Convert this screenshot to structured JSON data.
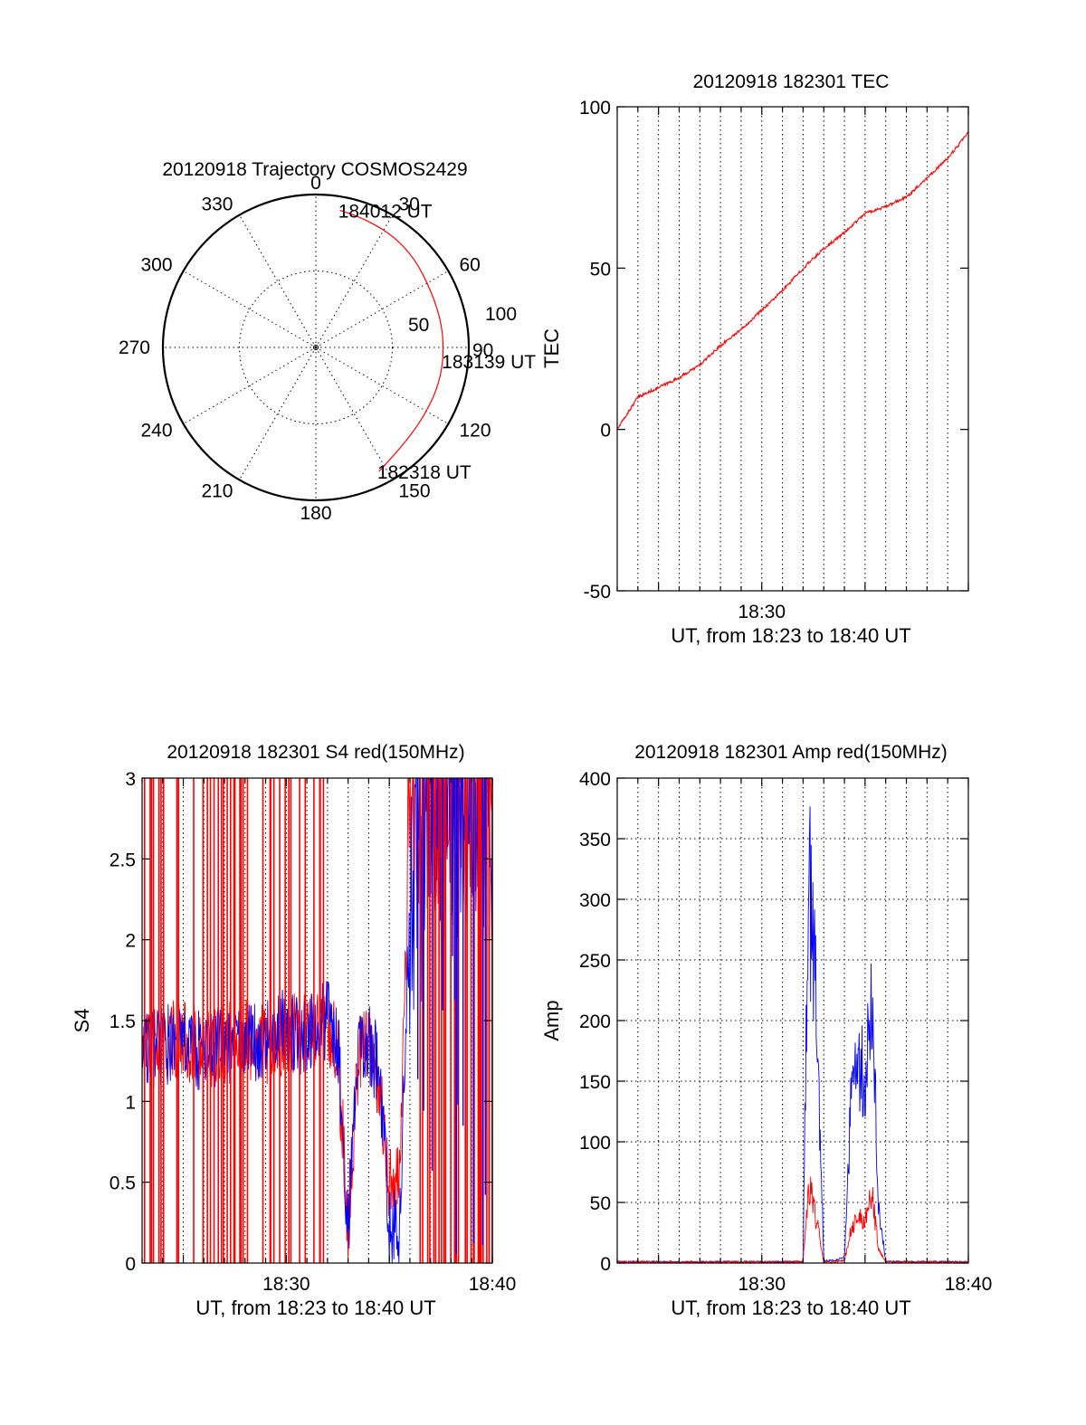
{
  "figure": {
    "date": "20120918",
    "series_colors": {
      "red_channel": "#ff0000",
      "blue_channel": "#0000ff"
    }
  },
  "chart_data": [
    {
      "id": "trajectory",
      "type": "polar",
      "title": "20120918 Trajectory COSMOS2429",
      "azimuth_labels": [
        "0",
        "30",
        "60",
        "90",
        "120",
        "150",
        "180",
        "210",
        "240",
        "270",
        "300",
        "330"
      ],
      "radial_labels": [
        "50",
        "100"
      ],
      "rlim": [
        0,
        100
      ],
      "grid": true,
      "track_color": "#ff0000",
      "track": [
        {
          "az": 153,
          "r": 91
        },
        {
          "az": 140,
          "r": 86
        },
        {
          "az": 125,
          "r": 84
        },
        {
          "az": 110,
          "r": 84
        },
        {
          "az": 96,
          "r": 84
        },
        {
          "az": 80,
          "r": 84
        },
        {
          "az": 64,
          "r": 84
        },
        {
          "az": 48,
          "r": 87
        },
        {
          "az": 34,
          "r": 89
        },
        {
          "az": 20,
          "r": 90
        },
        {
          "az": 10,
          "r": 91
        }
      ],
      "annotations": [
        {
          "text": "184012 UT",
          "az": 10,
          "r": 91
        },
        {
          "text": "183139 UT",
          "az": 96,
          "r": 84
        },
        {
          "text": "182318 UT",
          "az": 153,
          "r": 91
        }
      ]
    },
    {
      "id": "tec",
      "type": "line",
      "title": "20120918 182301 TEC",
      "ylabel": "TEC",
      "xlabel": "UT, from 18:23 to 18:40 UT",
      "xlim": [
        "18:23",
        "18:40"
      ],
      "ylim": [
        -50,
        100
      ],
      "yticks": [
        -50,
        0,
        50,
        100
      ],
      "xtick_labels": [
        {
          "x": "18:30",
          "label": "18:30"
        }
      ],
      "grid": "vertical-minutes",
      "series": [
        {
          "color": "#ff0000",
          "x": [
            "18:23",
            "18:24",
            "18:25",
            "18:26",
            "18:27",
            "18:28",
            "18:29",
            "18:30",
            "18:31",
            "18:32",
            "18:33",
            "18:34",
            "18:35",
            "18:36",
            "18:37",
            "18:38",
            "18:39",
            "18:40"
          ],
          "values": [
            0,
            10,
            13,
            16,
            20,
            26,
            31,
            37,
            43,
            50,
            56,
            61,
            67,
            69,
            72,
            78,
            84,
            92
          ]
        }
      ]
    },
    {
      "id": "s4",
      "type": "line",
      "title": "20120918 182301 S4 red(150MHz)",
      "ylabel": "S4",
      "xlabel": "UT, from 18:23 to 18:40 UT",
      "xlim": [
        "18:23",
        "18:40"
      ],
      "ylim": [
        0,
        3
      ],
      "yticks": [
        0,
        0.5,
        1,
        1.5,
        2,
        2.5,
        3
      ],
      "xtick_labels": [
        {
          "x": "18:30",
          "label": "18:30"
        },
        {
          "x": "18:40",
          "label": "18:40"
        }
      ],
      "grid": "vertical-minutes",
      "series": [
        {
          "color": "#ff0000",
          "x": [
            "18:23",
            "18:24",
            "18:25",
            "18:26",
            "18:27",
            "18:28",
            "18:29",
            "18:30",
            "18:31",
            "18:32",
            "18:32:30",
            "18:33",
            "18:33:30",
            "18:34",
            "18:34:30",
            "18:35",
            "18:35:30",
            "18:36",
            "18:37",
            "18:38",
            "18:39",
            "18:40"
          ],
          "values": [
            1.3,
            1.35,
            1.4,
            1.3,
            1.35,
            1.4,
            1.35,
            1.4,
            1.45,
            1.5,
            1.3,
            0.25,
            1.3,
            1.4,
            1.1,
            0.5,
            0.5,
            2.8,
            3.0,
            3.0,
            3.0,
            3.0
          ]
        },
        {
          "color": "#0000ff",
          "x": [
            "18:23",
            "18:24",
            "18:25",
            "18:26",
            "18:27",
            "18:28",
            "18:29",
            "18:30",
            "18:31",
            "18:32",
            "18:32:30",
            "18:33",
            "18:33:30",
            "18:34",
            "18:34:30",
            "18:35",
            "18:35:30",
            "18:36",
            "18:37",
            "18:38",
            "18:39",
            "18:40"
          ],
          "values": [
            1.3,
            1.35,
            1.35,
            1.3,
            1.35,
            1.35,
            1.4,
            1.45,
            1.4,
            1.5,
            1.4,
            0.2,
            1.35,
            1.35,
            1.2,
            0.2,
            0.25,
            2.2,
            2.6,
            2.8,
            2.9,
            2.8
          ]
        }
      ]
    },
    {
      "id": "amp",
      "type": "line",
      "title": "20120918 182301 Amp red(150MHz)",
      "ylabel": "Amp",
      "xlabel": "UT, from 18:23 to 18:40 UT",
      "xlim": [
        "18:23",
        "18:40"
      ],
      "ylim": [
        0,
        400
      ],
      "yticks": [
        0,
        50,
        100,
        150,
        200,
        250,
        300,
        350,
        400
      ],
      "xtick_labels": [
        {
          "x": "18:30",
          "label": "18:30"
        },
        {
          "x": "18:40",
          "label": "18:40"
        }
      ],
      "grid": "both",
      "series": [
        {
          "color": "#0000ff",
          "x": [
            "18:23",
            "18:31",
            "18:32",
            "18:32:10",
            "18:32:20",
            "18:32:40",
            "18:33",
            "18:33:30",
            "18:34",
            "18:34:20",
            "18:34:40",
            "18:35",
            "18:35:20",
            "18:35:40",
            "18:36",
            "18:40"
          ],
          "values": [
            1,
            1,
            1,
            200,
            270,
            180,
            2,
            2,
            5,
            120,
            150,
            130,
            190,
            40,
            1,
            1
          ]
        },
        {
          "color": "#ff0000",
          "x": [
            "18:23",
            "18:31",
            "18:32",
            "18:32:10",
            "18:32:20",
            "18:32:40",
            "18:33",
            "18:33:30",
            "18:34",
            "18:34:20",
            "18:34:40",
            "18:35",
            "18:35:20",
            "18:35:40",
            "18:36",
            "18:40"
          ],
          "values": [
            1,
            1,
            1,
            40,
            55,
            30,
            1,
            1,
            2,
            25,
            35,
            30,
            50,
            10,
            1,
            1
          ]
        }
      ]
    }
  ]
}
